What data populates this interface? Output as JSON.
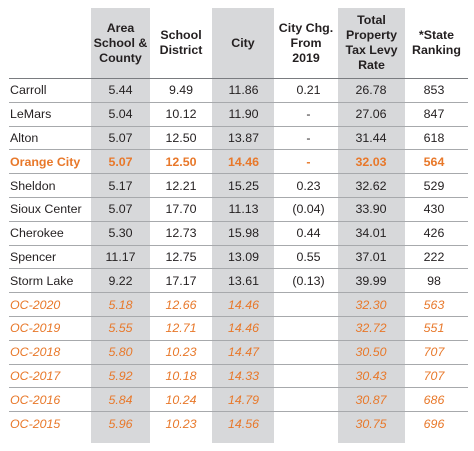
{
  "headers": {
    "area_school_county": [
      "Area",
      "School &",
      "County"
    ],
    "school_district": [
      "School",
      "District"
    ],
    "city": [
      "City"
    ],
    "city_change": [
      "City Chg.",
      "From",
      "2019"
    ],
    "total_levy": [
      "Total",
      "Property",
      "Tax Levy",
      "Rate"
    ],
    "state_ranking": [
      "*State",
      "Ranking"
    ]
  },
  "rows": [
    {
      "name": "Carroll",
      "area": "5.44",
      "school": "9.49",
      "city": "11.86",
      "chg": "0.21",
      "total": "26.78",
      "rank": "853"
    },
    {
      "name": "LeMars",
      "area": "5.04",
      "school": "10.12",
      "city": "11.90",
      "chg": "-",
      "total": "27.06",
      "rank": "847"
    },
    {
      "name": "Alton",
      "area": "5.07",
      "school": "12.50",
      "city": "13.87",
      "chg": "-",
      "total": "31.44",
      "rank": "618"
    },
    {
      "name": "Orange City",
      "area": "5.07",
      "school": "12.50",
      "city": "14.46",
      "chg": "-",
      "total": "32.03",
      "rank": "564"
    },
    {
      "name": "Sheldon",
      "area": "5.17",
      "school": "12.21",
      "city": "15.25",
      "chg": "0.23",
      "total": "32.62",
      "rank": "529"
    },
    {
      "name": "Sioux Center",
      "area": "5.07",
      "school": "17.70",
      "city": "11.13",
      "chg": "(0.04)",
      "total": "33.90",
      "rank": "430"
    },
    {
      "name": "Cherokee",
      "area": "5.30",
      "school": "12.73",
      "city": "15.98",
      "chg": "0.44",
      "total": "34.01",
      "rank": "426"
    },
    {
      "name": "Spencer",
      "area": "11.17",
      "school": "12.75",
      "city": "13.09",
      "chg": "0.55",
      "total": "37.01",
      "rank": "222"
    },
    {
      "name": "Storm Lake",
      "area": "9.22",
      "school": "17.17",
      "city": "13.61",
      "chg": "(0.13)",
      "total": "39.99",
      "rank": "98"
    },
    {
      "name": "OC-2020",
      "area": "5.18",
      "school": "12.66",
      "city": "14.46",
      "chg": "",
      "total": "32.30",
      "rank": "563"
    },
    {
      "name": "OC-2019",
      "area": "5.55",
      "school": "12.71",
      "city": "14.46",
      "chg": "",
      "total": "32.72",
      "rank": "551"
    },
    {
      "name": "OC-2018",
      "area": "5.80",
      "school": "10.23",
      "city": "14.47",
      "chg": "",
      "total": "30.50",
      "rank": "707"
    },
    {
      "name": "OC-2017",
      "area": "5.92",
      "school": "10.18",
      "city": "14.33",
      "chg": "",
      "total": "30.43",
      "rank": "707"
    },
    {
      "name": "OC-2016",
      "area": "5.84",
      "school": "10.24",
      "city": "14.79",
      "chg": "",
      "total": "30.87",
      "rank": "686"
    },
    {
      "name": "OC-2015",
      "area": "5.96",
      "school": "10.23",
      "city": "14.56",
      "chg": "",
      "total": "30.75",
      "rank": "696"
    }
  ],
  "colors": {
    "highlight": "#e8782a",
    "shade": "#d7d8da",
    "text": "#231f20"
  }
}
